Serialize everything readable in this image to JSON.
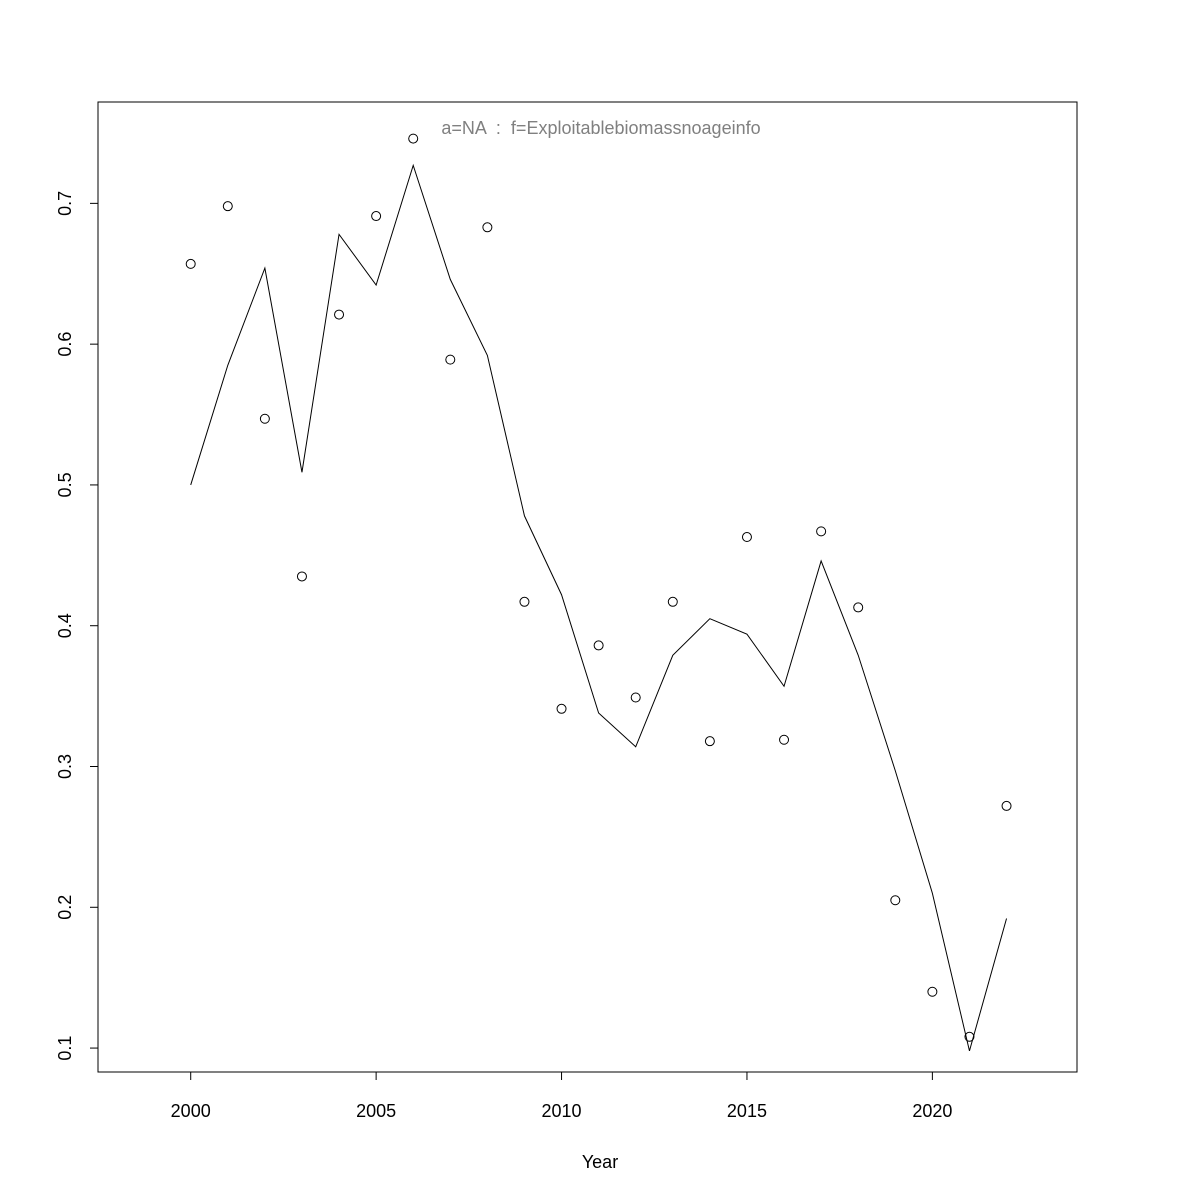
{
  "chart_data": {
    "type": "scatter",
    "title": "a=NA  :  f=Exploitablebiomassnoageinfo",
    "xlabel": "Year",
    "ylabel": "",
    "xlim": [
      1997.5,
      2023.9
    ],
    "ylim": [
      0.083,
      0.772
    ],
    "x_ticks": [
      2000,
      2005,
      2010,
      2015,
      2020
    ],
    "y_ticks": [
      0.1,
      0.2,
      0.3,
      0.4,
      0.5,
      0.6,
      0.7
    ],
    "x_tick_labels": [
      "2000",
      "2005",
      "2010",
      "2015",
      "2020"
    ],
    "y_tick_labels": [
      "0.1",
      "0.2",
      "0.3",
      "0.4",
      "0.5",
      "0.6",
      "0.7"
    ],
    "grid": false,
    "series": [
      {
        "kind": "points",
        "x": [
          2000,
          2001,
          2002,
          2003,
          2004,
          2005,
          2006,
          2007,
          2008,
          2009,
          2010,
          2011,
          2012,
          2013,
          2014,
          2015,
          2016,
          2017,
          2018,
          2019,
          2020,
          2021,
          2022
        ],
        "values": [
          0.657,
          0.698,
          0.547,
          0.435,
          0.621,
          0.691,
          0.746,
          0.589,
          0.683,
          0.417,
          0.341,
          0.386,
          0.349,
          0.417,
          0.318,
          0.463,
          0.319,
          0.467,
          0.413,
          0.205,
          0.14,
          0.108,
          0.272
        ]
      },
      {
        "kind": "line",
        "x": [
          2000,
          2001,
          2002,
          2003,
          2004,
          2005,
          2006,
          2007,
          2008,
          2009,
          2010,
          2011,
          2012,
          2013,
          2014,
          2015,
          2016,
          2017,
          2018,
          2019,
          2020,
          2021,
          2022
        ],
        "values": [
          0.5,
          0.585,
          0.654,
          0.509,
          0.678,
          0.642,
          0.727,
          0.646,
          0.592,
          0.478,
          0.422,
          0.338,
          0.314,
          0.379,
          0.405,
          0.394,
          0.357,
          0.446,
          0.379,
          0.297,
          0.21,
          0.098,
          0.192
        ]
      }
    ]
  }
}
